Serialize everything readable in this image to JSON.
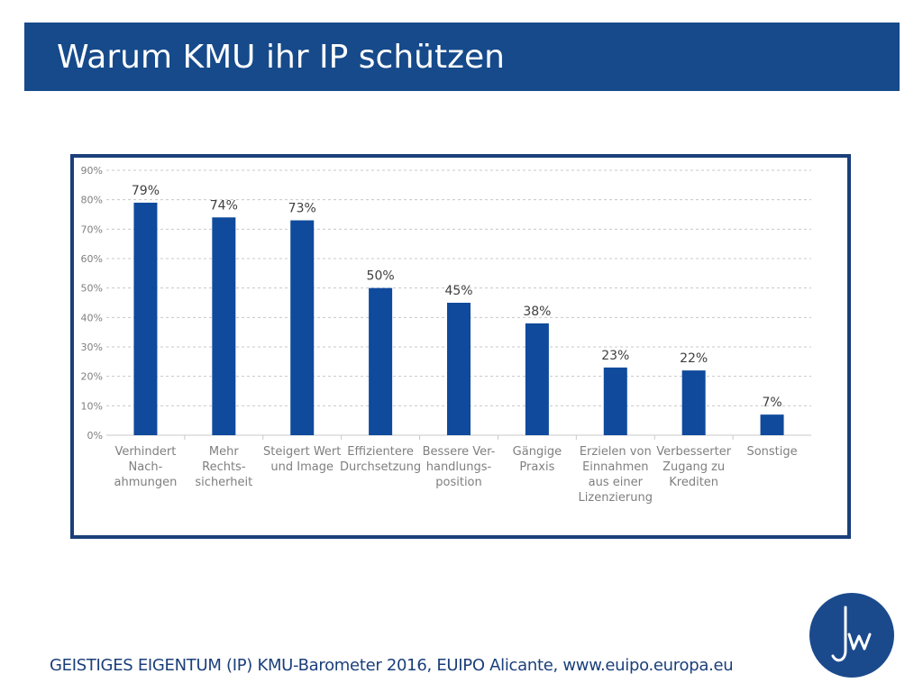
{
  "header": {
    "title": "Warum KMU ihr IP schützen"
  },
  "colors": {
    "title_bar": "#164a8a",
    "bar": "#0f4a9c",
    "frame": "#1b3f7a",
    "logo": "#1b4a8c"
  },
  "logo": {
    "icon": "jw-monogram-logo",
    "text": "jw"
  },
  "chart_data": {
    "type": "bar",
    "title": "",
    "xlabel": "",
    "ylabel": "",
    "ylim": [
      0,
      90
    ],
    "y_ticks": [
      "0%",
      "10%",
      "20%",
      "30%",
      "40%",
      "50%",
      "60%",
      "70%",
      "80%",
      "90%"
    ],
    "grid": true,
    "categories": [
      [
        "Verhindert",
        "Nach-",
        "ahmungen"
      ],
      [
        "Mehr",
        "Rechts-",
        "sicherheit"
      ],
      [
        "Steigert Wert",
        "und Image"
      ],
      [
        "Effizientere",
        "Durchsetzung"
      ],
      [
        "Bessere Ver-",
        "handlungs-",
        "position"
      ],
      [
        "Gängige",
        "Praxis"
      ],
      [
        "Erzielen von",
        "Einnahmen",
        "aus einer",
        "Lizenzierung"
      ],
      [
        "Verbesserter",
        "Zugang zu",
        "Krediten"
      ],
      [
        "Sonstige"
      ]
    ],
    "values": [
      79,
      74,
      73,
      50,
      45,
      38,
      23,
      22,
      7
    ],
    "value_labels": [
      "79%",
      "74%",
      "73%",
      "50%",
      "45%",
      "38%",
      "23%",
      "22%",
      "7%"
    ]
  },
  "footer": {
    "source": "GEISTIGES EIGENTUM (IP) KMU-Barometer 2016, EUIPO Alicante, www.euipo.europa.eu"
  }
}
